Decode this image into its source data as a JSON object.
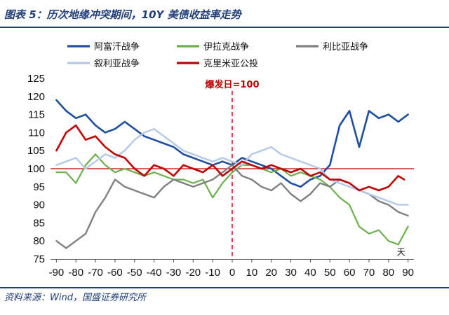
{
  "figure": {
    "title": "图表 5：历次地缘冲突期间，10Y 美债收益率走势",
    "source": "资料来源：Wind，国盛证券研究所"
  },
  "chart_data": {
    "type": "line",
    "title": "图表 5：历次地缘冲突期间，10Y 美债收益率走势",
    "xlabel": "天",
    "ylabel": "",
    "xlim": [
      -93,
      93
    ],
    "ylim": [
      75,
      125
    ],
    "xticks": [
      -90,
      -80,
      -70,
      -60,
      -50,
      -40,
      -30,
      -20,
      -10,
      0,
      10,
      20,
      30,
      40,
      50,
      60,
      70,
      80,
      90
    ],
    "yticks": [
      75,
      80,
      85,
      90,
      95,
      100,
      105,
      110,
      115,
      120,
      125
    ],
    "baseline": {
      "value": 100,
      "color": "#c00000"
    },
    "event_line": {
      "x": 0,
      "label": "爆发日=100",
      "color": "#c00000"
    },
    "legend_position": "top",
    "series": [
      {
        "name": "阿富汗战争",
        "color": "#1f4fa0",
        "width": 2.6,
        "x": [
          -90,
          -85,
          -80,
          -75,
          -70,
          -65,
          -60,
          -55,
          -50,
          -45,
          -40,
          -35,
          -30,
          -25,
          -20,
          -15,
          -10,
          -5,
          0,
          5,
          10,
          15,
          20,
          25,
          30,
          35,
          40,
          45,
          50,
          55,
          60,
          65,
          70,
          75,
          80,
          85,
          90
        ],
        "y": [
          119,
          116,
          114,
          115,
          112,
          110,
          111,
          113,
          111,
          109,
          108,
          107,
          106,
          104,
          103,
          102,
          101,
          102,
          101,
          103,
          102,
          101,
          100,
          98,
          96,
          95,
          97,
          98,
          101,
          112,
          116,
          106,
          116,
          114,
          115,
          113,
          115
        ]
      },
      {
        "name": "伊拉克战争",
        "color": "#6ab04c",
        "width": 2.2,
        "x": [
          -90,
          -85,
          -80,
          -75,
          -70,
          -65,
          -60,
          -55,
          -50,
          -45,
          -40,
          -35,
          -30,
          -25,
          -20,
          -15,
          -10,
          -5,
          0,
          5,
          10,
          15,
          20,
          25,
          30,
          35,
          40,
          45,
          50,
          55,
          60,
          65,
          70,
          75,
          80,
          85,
          90
        ],
        "y": [
          99,
          99,
          96,
          101,
          104,
          101,
          99,
          100,
          99,
          98,
          99,
          98,
          97,
          97,
          96,
          97,
          92,
          96,
          99,
          101,
          101,
          100,
          99,
          100,
          98,
          99,
          98,
          97,
          95,
          92,
          90,
          84,
          82,
          83,
          80,
          79,
          84
        ]
      },
      {
        "name": "利比亚战争",
        "color": "#808080",
        "width": 2.4,
        "x": [
          -90,
          -85,
          -80,
          -75,
          -70,
          -65,
          -60,
          -55,
          -50,
          -45,
          -40,
          -35,
          -30,
          -25,
          -20,
          -15,
          -10,
          -5,
          0,
          5,
          10,
          15,
          20,
          25,
          30,
          35,
          40,
          45,
          50,
          55,
          60,
          65,
          70,
          75,
          80,
          85,
          90
        ],
        "y": [
          80,
          78,
          80,
          82,
          88,
          92,
          97,
          95,
          94,
          93,
          92,
          95,
          97,
          96,
          95,
          96,
          97,
          99,
          101,
          98,
          97,
          95,
          94,
          96,
          93,
          91,
          93,
          96,
          95,
          97,
          96,
          94,
          93,
          91,
          90,
          88,
          87
        ]
      },
      {
        "name": "叙利亚战争",
        "color": "#b4c8e8",
        "width": 2.4,
        "x": [
          -90,
          -85,
          -80,
          -75,
          -70,
          -65,
          -60,
          -55,
          -50,
          -45,
          -40,
          -35,
          -30,
          -25,
          -20,
          -15,
          -10,
          -5,
          0,
          5,
          10,
          15,
          20,
          25,
          30,
          35,
          40,
          45,
          50,
          55,
          60,
          65,
          70,
          75,
          80,
          85,
          90
        ],
        "y": [
          101,
          102,
          103,
          100,
          102,
          104,
          103,
          105,
          108,
          110,
          111,
          109,
          107,
          105,
          104,
          103,
          102,
          103,
          102,
          101,
          104,
          105,
          106,
          104,
          103,
          102,
          101,
          100,
          97,
          96,
          95,
          94,
          93,
          92,
          91,
          90,
          90
        ]
      },
      {
        "name": "克里米亚公投",
        "color": "#c00000",
        "width": 2.6,
        "x": [
          -90,
          -85,
          -80,
          -75,
          -70,
          -65,
          -60,
          -55,
          -50,
          -45,
          -40,
          -35,
          -30,
          -25,
          -20,
          -15,
          -10,
          -5,
          0,
          5,
          10,
          15,
          20,
          25,
          30,
          35,
          40,
          45,
          50,
          55,
          60,
          65,
          70,
          75,
          80,
          85,
          88
        ],
        "y": [
          105,
          110,
          112,
          108,
          109,
          106,
          104,
          103,
          100,
          98,
          101,
          100,
          98,
          101,
          100,
          99,
          101,
          98,
          100,
          102,
          101,
          100,
          101,
          100,
          99,
          100,
          98,
          99,
          97,
          97,
          96,
          94,
          95,
          94,
          95,
          98,
          97
        ]
      }
    ]
  }
}
